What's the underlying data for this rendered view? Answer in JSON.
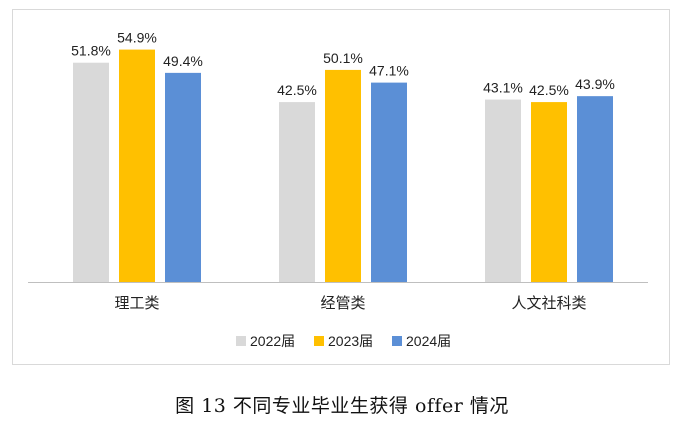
{
  "caption": "图 13   不同专业毕业生获得 offer 情况",
  "chart_data": {
    "type": "bar",
    "categories": [
      "理工类",
      "经管类",
      "人文社科类"
    ],
    "series": [
      {
        "name": "2022届",
        "values": [
          51.8,
          42.5,
          43.1
        ],
        "color": "#d9d9d9"
      },
      {
        "name": "2023届",
        "values": [
          54.9,
          50.1,
          42.5
        ],
        "color": "#ffc000"
      },
      {
        "name": "2024届",
        "values": [
          49.4,
          47.1,
          43.9
        ],
        "color": "#5b8fd6"
      }
    ],
    "value_format": "percent-1dp",
    "ylim": [
      0,
      60
    ],
    "grid": false,
    "legend_position": "bottom",
    "title": "",
    "xlabel": "",
    "ylabel": ""
  }
}
